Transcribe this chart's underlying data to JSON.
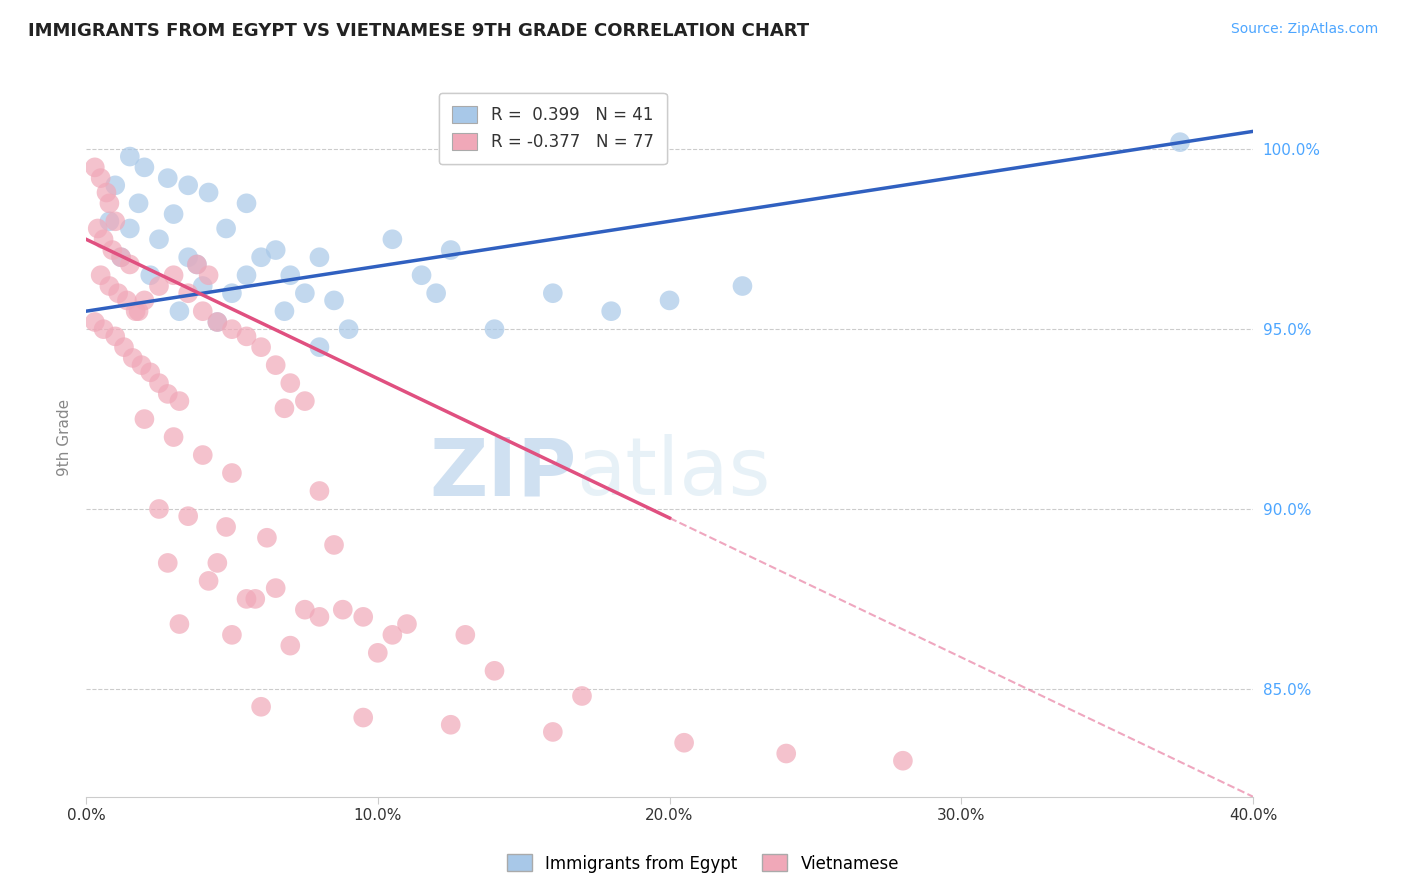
{
  "title": "IMMIGRANTS FROM EGYPT VS VIETNAMESE 9TH GRADE CORRELATION CHART",
  "source": "Source: ZipAtlas.com",
  "ylabel": "9th Grade",
  "xlim": [
    0.0,
    40.0
  ],
  "ylim": [
    82.0,
    102.0
  ],
  "yticks": [
    85.0,
    90.0,
    95.0,
    100.0
  ],
  "xticks": [
    0.0,
    10.0,
    20.0,
    30.0,
    40.0
  ],
  "blue_color": "#a8c8e8",
  "pink_color": "#f0a8b8",
  "blue_line_color": "#3060c0",
  "pink_line_color": "#e05080",
  "legend_blue_label": "R =  0.399   N = 41",
  "legend_pink_label": "R = -0.377   N = 77",
  "legend_blue_display": "Immigrants from Egypt",
  "legend_pink_display": "Vietnamese",
  "watermark_zip": "ZIP",
  "watermark_atlas": "atlas",
  "blue_scatter_x": [
    1.5,
    2.0,
    2.8,
    3.5,
    4.2,
    1.0,
    1.8,
    3.0,
    4.8,
    2.5,
    1.2,
    3.8,
    5.5,
    6.5,
    4.0,
    5.0,
    2.2,
    6.0,
    7.5,
    8.5,
    3.2,
    4.5,
    7.0,
    9.0,
    10.5,
    6.8,
    12.0,
    8.0,
    14.0,
    11.5,
    16.0,
    18.0,
    20.0,
    22.5,
    0.8,
    1.5,
    3.5,
    5.5,
    8.0,
    12.5,
    37.5
  ],
  "blue_scatter_y": [
    99.8,
    99.5,
    99.2,
    99.0,
    98.8,
    99.0,
    98.5,
    98.2,
    97.8,
    97.5,
    97.0,
    96.8,
    96.5,
    97.2,
    96.2,
    96.0,
    96.5,
    97.0,
    96.0,
    95.8,
    95.5,
    95.2,
    96.5,
    95.0,
    97.5,
    95.5,
    96.0,
    94.5,
    95.0,
    96.5,
    96.0,
    95.5,
    95.8,
    96.2,
    98.0,
    97.8,
    97.0,
    98.5,
    97.0,
    97.2,
    100.2
  ],
  "pink_scatter_x": [
    0.3,
    0.5,
    0.7,
    0.8,
    1.0,
    0.4,
    0.6,
    0.9,
    1.2,
    1.5,
    0.5,
    0.8,
    1.1,
    1.4,
    1.7,
    0.3,
    0.6,
    1.0,
    1.3,
    1.6,
    1.9,
    2.2,
    2.5,
    2.8,
    3.2,
    1.8,
    2.0,
    2.5,
    3.0,
    3.5,
    4.0,
    4.5,
    5.0,
    5.5,
    3.8,
    4.2,
    6.0,
    6.5,
    7.0,
    7.5,
    2.0,
    3.0,
    4.0,
    5.0,
    6.8,
    8.0,
    2.5,
    3.5,
    4.8,
    6.2,
    8.5,
    2.8,
    4.2,
    5.8,
    7.5,
    9.5,
    3.2,
    5.0,
    7.0,
    10.0,
    4.5,
    6.5,
    8.8,
    11.0,
    13.0,
    5.5,
    8.0,
    10.5,
    14.0,
    17.0,
    6.0,
    9.5,
    12.5,
    16.0,
    20.5,
    24.0,
    28.0
  ],
  "pink_scatter_y": [
    99.5,
    99.2,
    98.8,
    98.5,
    98.0,
    97.8,
    97.5,
    97.2,
    97.0,
    96.8,
    96.5,
    96.2,
    96.0,
    95.8,
    95.5,
    95.2,
    95.0,
    94.8,
    94.5,
    94.2,
    94.0,
    93.8,
    93.5,
    93.2,
    93.0,
    95.5,
    95.8,
    96.2,
    96.5,
    96.0,
    95.5,
    95.2,
    95.0,
    94.8,
    96.8,
    96.5,
    94.5,
    94.0,
    93.5,
    93.0,
    92.5,
    92.0,
    91.5,
    91.0,
    92.8,
    90.5,
    90.0,
    89.8,
    89.5,
    89.2,
    89.0,
    88.5,
    88.0,
    87.5,
    87.2,
    87.0,
    86.8,
    86.5,
    86.2,
    86.0,
    88.5,
    87.8,
    87.2,
    86.8,
    86.5,
    87.5,
    87.0,
    86.5,
    85.5,
    84.8,
    84.5,
    84.2,
    84.0,
    83.8,
    83.5,
    83.2,
    83.0
  ],
  "blue_trend_x0": 0.0,
  "blue_trend_y0": 95.5,
  "blue_trend_x1": 40.0,
  "blue_trend_y1": 100.5,
  "pink_trend_x0": 0.0,
  "pink_trend_y0": 97.5,
  "pink_trend_x1": 40.0,
  "pink_trend_y1": 82.0,
  "pink_solid_end_x": 20.0,
  "pink_dashed_start_x": 20.0
}
